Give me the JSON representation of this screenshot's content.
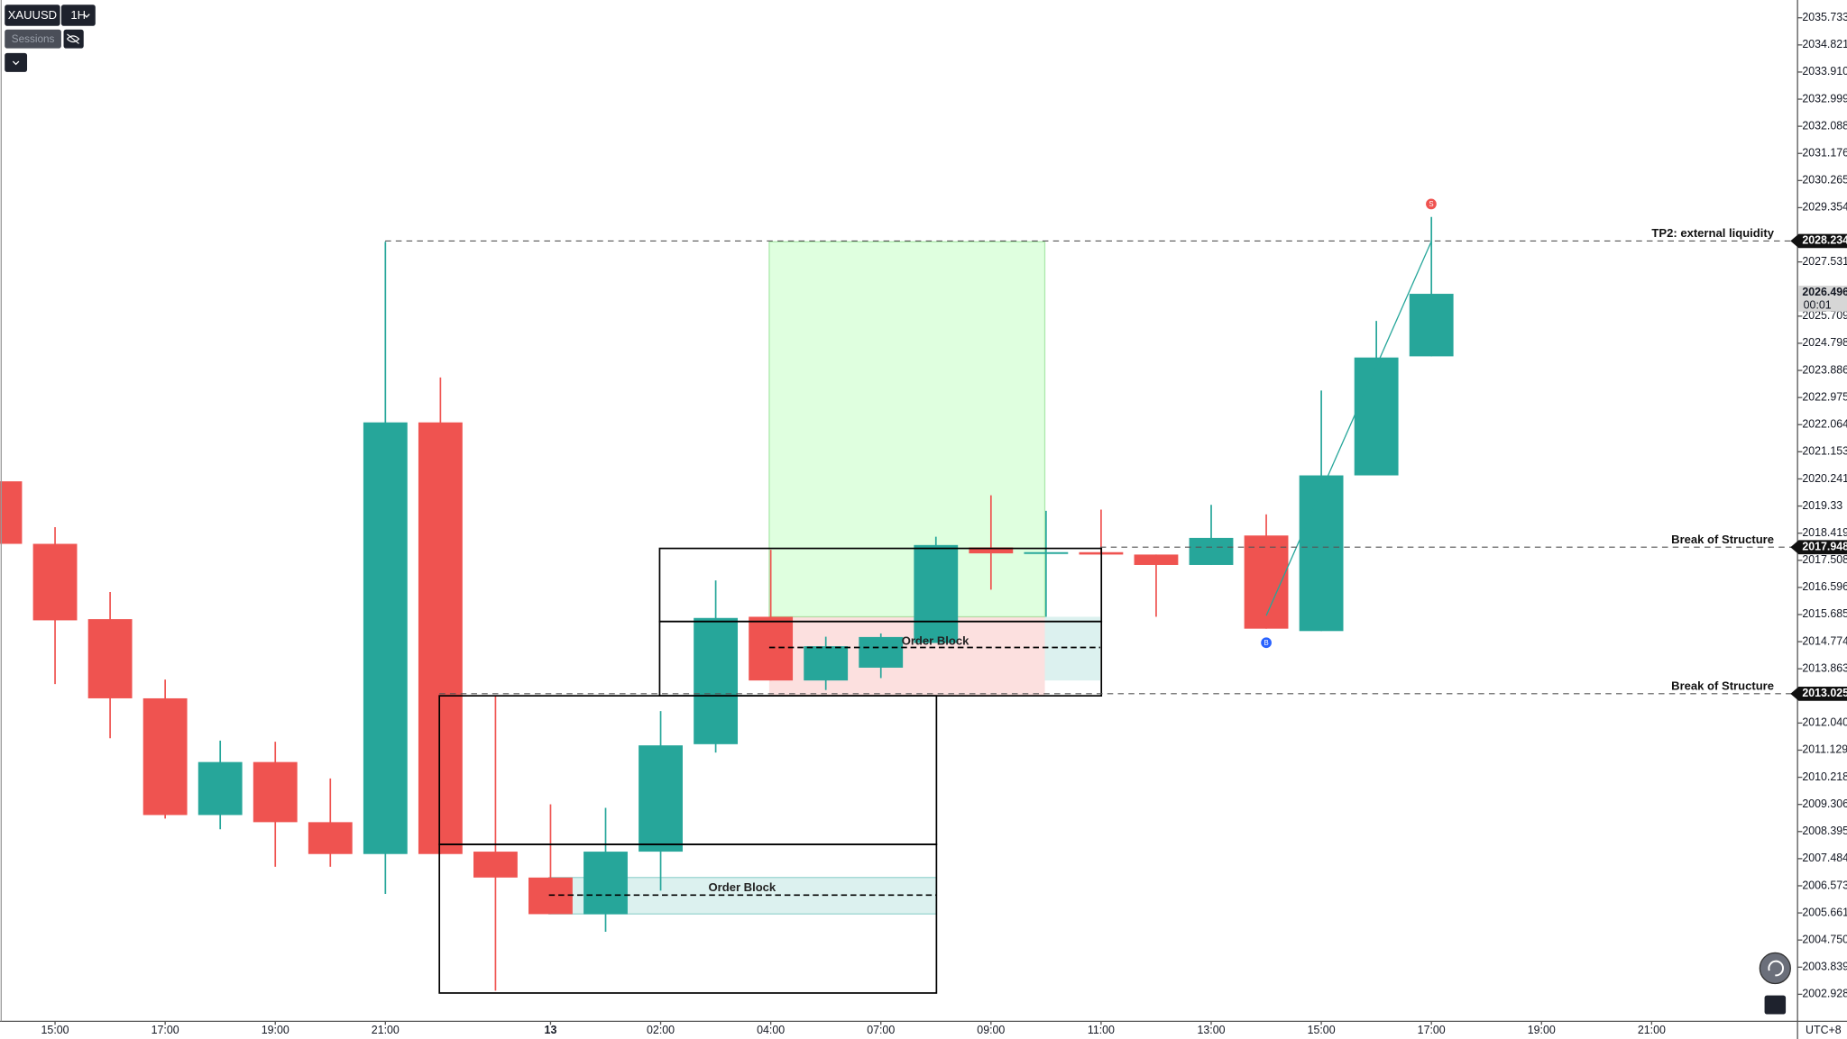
{
  "header": {
    "symbol": "XAUUSD",
    "interval": "1H",
    "indicator": "Sessions",
    "timezone": "UTC+8"
  },
  "chart_data": {
    "type": "candlestick",
    "x": [
      0,
      1,
      2,
      3,
      4,
      5,
      6,
      7,
      8,
      9,
      10,
      11,
      12,
      13,
      14,
      15,
      16,
      17,
      18,
      19,
      20,
      21,
      22,
      23,
      24,
      25,
      26
    ],
    "open": [
      2020.16,
      2018.06,
      2015.53,
      2012.87,
      2008.95,
      2010.73,
      2008.71,
      2007.64,
      2022.14,
      2007.72,
      2006.85,
      2005.62,
      2007.72,
      2011.33,
      2015.61,
      2013.47,
      2013.9,
      2014.73,
      2017.94,
      2017.74,
      2017.78,
      2017.7,
      2017.35,
      2018.34,
      2015.13,
      2020.36,
      2024.36
    ],
    "high": [
      2020.16,
      2018.62,
      2016.44,
      2013.5,
      2011.45,
      2011.41,
      2010.18,
      2028.21,
      2023.65,
      2012.95,
      2009.31,
      2009.19,
      2012.44,
      2016.83,
      2017.86,
      2014.94,
      2015.05,
      2018.3,
      2019.69,
      2019.17,
      2019.21,
      2017.7,
      2019.37,
      2019.05,
      2023.21,
      2025.55,
      2029.04
    ],
    "low": [
      2018.06,
      2013.35,
      2011.53,
      2008.83,
      2008.47,
      2007.21,
      2007.21,
      2006.3,
      2007.64,
      2003.05,
      2005.62,
      2005.03,
      2006.41,
      2011.05,
      2013.47,
      2013.15,
      2013.55,
      2014.73,
      2016.52,
      2015.61,
      2017.7,
      2015.61,
      2017.35,
      2015.21,
      2015.13,
      2020.36,
      2024.36
    ],
    "close": [
      2018.06,
      2015.49,
      2012.87,
      2008.95,
      2010.73,
      2008.71,
      2007.64,
      2022.14,
      2007.64,
      2006.85,
      2005.62,
      2007.72,
      2011.29,
      2015.57,
      2013.47,
      2014.62,
      2014.93,
      2018.02,
      2017.74,
      2017.78,
      2017.7,
      2017.35,
      2018.26,
      2015.21,
      2020.36,
      2024.32,
      2026.46
    ],
    "up_color": "#26a69a",
    "down_color": "#ef5350",
    "xlim": [
      0,
      32.65
    ],
    "xticks": [
      {
        "value": 1,
        "label": "15:00"
      },
      {
        "value": 3,
        "label": "17:00"
      },
      {
        "value": 5,
        "label": "19:00"
      },
      {
        "value": 7,
        "label": "21:00"
      },
      {
        "value": 10,
        "label": "13"
      },
      {
        "value": 12,
        "label": "02:00"
      },
      {
        "value": 14,
        "label": "04:00"
      },
      {
        "value": 16,
        "label": "07:00"
      },
      {
        "value": 18,
        "label": "09:00"
      },
      {
        "value": 20,
        "label": "11:00"
      },
      {
        "value": 22,
        "label": "13:00"
      },
      {
        "value": 24,
        "label": "15:00"
      },
      {
        "value": 26,
        "label": "17:00"
      },
      {
        "value": 28,
        "label": "19:00"
      },
      {
        "value": 30,
        "label": "21:00"
      }
    ],
    "ylim": [
      2002.02,
      2036.33
    ],
    "yticks": [
      2035.733,
      2034.821,
      {
        "value": 2033.91,
        "label": "2033.910"
      },
      2032.999,
      2032.088,
      2031.176,
      2030.265,
      2029.354,
      2027.531,
      2025.709,
      2024.798,
      2023.886,
      2022.975,
      2022.064,
      2021.153,
      2020.241,
      2019.33,
      2018.419,
      2017.508,
      2016.596,
      2015.685,
      2014.774,
      2013.863,
      {
        "value": 2012.04,
        "label": "2012.040"
      },
      2011.129,
      2010.218,
      2009.306,
      2008.395,
      2007.484,
      2006.573,
      2005.661,
      {
        "value": 2004.75,
        "label": "2004.750"
      },
      2003.839,
      2002.928
    ],
    "levels": [
      {
        "value": 2028.234,
        "text": "TP2: external liquidity"
      },
      {
        "value": 2017.948,
        "text": "Break of Structure"
      },
      {
        "value": 2013.025,
        "text": "Break of Structure"
      }
    ],
    "last_price": {
      "value": 2026.496,
      "countdown": "00:01"
    },
    "zones": [
      "Order Block",
      "Order Block"
    ],
    "signals": [
      "S",
      "B"
    ]
  }
}
